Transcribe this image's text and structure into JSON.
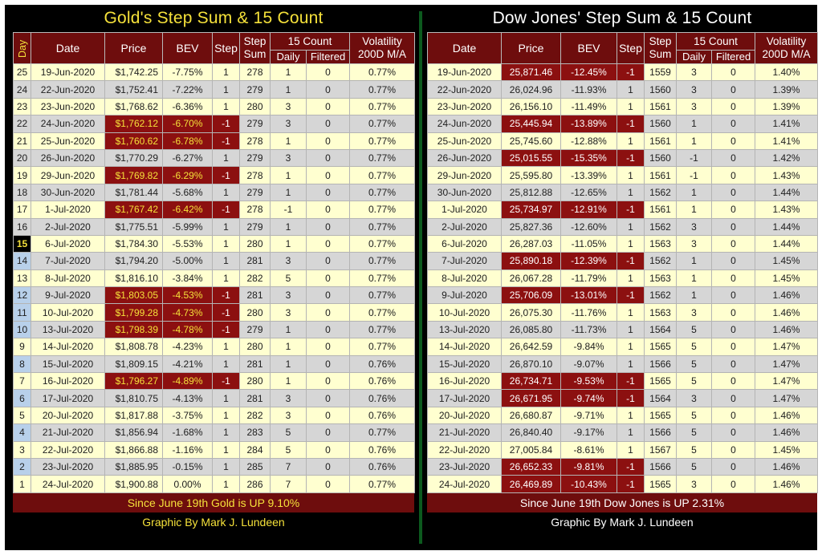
{
  "gold": {
    "title": "Gold's Step Sum & 15 Count",
    "headers": {
      "day": "Day",
      "date": "Date",
      "price": "Price",
      "bev": "BEV",
      "step": "Step",
      "step_sum": [
        "Step",
        "Sum"
      ],
      "count15": "15 Count",
      "daily": "Daily",
      "filtered": "Filtered",
      "volatility": [
        "Volatility",
        "200D M/A"
      ]
    },
    "rows": [
      {
        "day": "25",
        "date": "19-Jun-2020",
        "price": "$1,742.25",
        "bev": "-7.75%",
        "step": "1",
        "sum": "278",
        "daily": "1",
        "filtered": "0",
        "vol": "0.77%"
      },
      {
        "day": "24",
        "date": "22-Jun-2020",
        "price": "$1,752.41",
        "bev": "-7.22%",
        "step": "1",
        "sum": "279",
        "daily": "1",
        "filtered": "0",
        "vol": "0.77%"
      },
      {
        "day": "23",
        "date": "23-Jun-2020",
        "price": "$1,768.62",
        "bev": "-6.36%",
        "step": "1",
        "sum": "280",
        "daily": "3",
        "filtered": "0",
        "vol": "0.77%"
      },
      {
        "day": "22",
        "date": "24-Jun-2020",
        "price": "$1,762.12",
        "bev": "-6.70%",
        "step": "-1",
        "sum": "279",
        "daily": "3",
        "filtered": "0",
        "vol": "0.77%"
      },
      {
        "day": "21",
        "date": "25-Jun-2020",
        "price": "$1,760.62",
        "bev": "-6.78%",
        "step": "-1",
        "sum": "278",
        "daily": "1",
        "filtered": "0",
        "vol": "0.77%"
      },
      {
        "day": "20",
        "date": "26-Jun-2020",
        "price": "$1,770.29",
        "bev": "-6.27%",
        "step": "1",
        "sum": "279",
        "daily": "3",
        "filtered": "0",
        "vol": "0.77%"
      },
      {
        "day": "19",
        "date": "29-Jun-2020",
        "price": "$1,769.82",
        "bev": "-6.29%",
        "step": "-1",
        "sum": "278",
        "daily": "1",
        "filtered": "0",
        "vol": "0.77%"
      },
      {
        "day": "18",
        "date": "30-Jun-2020",
        "price": "$1,781.44",
        "bev": "-5.68%",
        "step": "1",
        "sum": "279",
        "daily": "1",
        "filtered": "0",
        "vol": "0.77%"
      },
      {
        "day": "17",
        "date": "1-Jul-2020",
        "price": "$1,767.42",
        "bev": "-6.42%",
        "step": "-1",
        "sum": "278",
        "daily": "-1",
        "filtered": "0",
        "vol": "0.77%"
      },
      {
        "day": "16",
        "date": "2-Jul-2020",
        "price": "$1,775.51",
        "bev": "-5.99%",
        "step": "1",
        "sum": "279",
        "daily": "1",
        "filtered": "0",
        "vol": "0.77%"
      },
      {
        "day": "15",
        "date": "6-Jul-2020",
        "price": "$1,784.30",
        "bev": "-5.53%",
        "step": "1",
        "sum": "280",
        "daily": "1",
        "filtered": "0",
        "vol": "0.77%"
      },
      {
        "day": "14",
        "date": "7-Jul-2020",
        "price": "$1,794.20",
        "bev": "-5.00%",
        "step": "1",
        "sum": "281",
        "daily": "3",
        "filtered": "0",
        "vol": "0.77%"
      },
      {
        "day": "13",
        "date": "8-Jul-2020",
        "price": "$1,816.10",
        "bev": "-3.84%",
        "step": "1",
        "sum": "282",
        "daily": "5",
        "filtered": "0",
        "vol": "0.77%"
      },
      {
        "day": "12",
        "date": "9-Jul-2020",
        "price": "$1,803.05",
        "bev": "-4.53%",
        "step": "-1",
        "sum": "281",
        "daily": "3",
        "filtered": "0",
        "vol": "0.77%"
      },
      {
        "day": "11",
        "date": "10-Jul-2020",
        "price": "$1,799.28",
        "bev": "-4.73%",
        "step": "-1",
        "sum": "280",
        "daily": "3",
        "filtered": "0",
        "vol": "0.77%"
      },
      {
        "day": "10",
        "date": "13-Jul-2020",
        "price": "$1,798.39",
        "bev": "-4.78%",
        "step": "-1",
        "sum": "279",
        "daily": "1",
        "filtered": "0",
        "vol": "0.77%"
      },
      {
        "day": "9",
        "date": "14-Jul-2020",
        "price": "$1,808.78",
        "bev": "-4.23%",
        "step": "1",
        "sum": "280",
        "daily": "1",
        "filtered": "0",
        "vol": "0.77%"
      },
      {
        "day": "8",
        "date": "15-Jul-2020",
        "price": "$1,809.15",
        "bev": "-4.21%",
        "step": "1",
        "sum": "281",
        "daily": "1",
        "filtered": "0",
        "vol": "0.76%"
      },
      {
        "day": "7",
        "date": "16-Jul-2020",
        "price": "$1,796.27",
        "bev": "-4.89%",
        "step": "-1",
        "sum": "280",
        "daily": "1",
        "filtered": "0",
        "vol": "0.76%"
      },
      {
        "day": "6",
        "date": "17-Jul-2020",
        "price": "$1,810.75",
        "bev": "-4.13%",
        "step": "1",
        "sum": "281",
        "daily": "3",
        "filtered": "0",
        "vol": "0.76%"
      },
      {
        "day": "5",
        "date": "20-Jul-2020",
        "price": "$1,817.88",
        "bev": "-3.75%",
        "step": "1",
        "sum": "282",
        "daily": "3",
        "filtered": "0",
        "vol": "0.76%"
      },
      {
        "day": "4",
        "date": "21-Jul-2020",
        "price": "$1,856.94",
        "bev": "-1.68%",
        "step": "1",
        "sum": "283",
        "daily": "5",
        "filtered": "0",
        "vol": "0.77%"
      },
      {
        "day": "3",
        "date": "22-Jul-2020",
        "price": "$1,866.88",
        "bev": "-1.16%",
        "step": "1",
        "sum": "284",
        "daily": "5",
        "filtered": "0",
        "vol": "0.76%"
      },
      {
        "day": "2",
        "date": "23-Jul-2020",
        "price": "$1,885.95",
        "bev": "-0.15%",
        "step": "1",
        "sum": "285",
        "daily": "7",
        "filtered": "0",
        "vol": "0.76%"
      },
      {
        "day": "1",
        "date": "24-Jul-2020",
        "price": "$1,900.88",
        "bev": "0.00%",
        "step": "1",
        "sum": "286",
        "daily": "7",
        "filtered": "0",
        "vol": "0.77%"
      }
    ],
    "summary": "Since June 19th Gold is UP 9.10%",
    "credit": "Graphic By Mark J. Lundeen"
  },
  "dow": {
    "title": "Dow Jones' Step Sum & 15 Count",
    "headers": {
      "date": "Date",
      "price": "Price",
      "bev": "BEV",
      "step": "Step",
      "step_sum": [
        "Step",
        "Sum"
      ],
      "count15": "15 Count",
      "daily": "Daily",
      "filtered": "Filtered",
      "volatility": [
        "Volatility",
        "200D M/A"
      ]
    },
    "rows": [
      {
        "date": "19-Jun-2020",
        "price": "25,871.46",
        "bev": "-12.45%",
        "step": "-1",
        "sum": "1559",
        "daily": "3",
        "filtered": "0",
        "vol": "1.40%"
      },
      {
        "date": "22-Jun-2020",
        "price": "26,024.96",
        "bev": "-11.93%",
        "step": "1",
        "sum": "1560",
        "daily": "3",
        "filtered": "0",
        "vol": "1.39%"
      },
      {
        "date": "23-Jun-2020",
        "price": "26,156.10",
        "bev": "-11.49%",
        "step": "1",
        "sum": "1561",
        "daily": "3",
        "filtered": "0",
        "vol": "1.39%"
      },
      {
        "date": "24-Jun-2020",
        "price": "25,445.94",
        "bev": "-13.89%",
        "step": "-1",
        "sum": "1560",
        "daily": "1",
        "filtered": "0",
        "vol": "1.41%"
      },
      {
        "date": "25-Jun-2020",
        "price": "25,745.60",
        "bev": "-12.88%",
        "step": "1",
        "sum": "1561",
        "daily": "1",
        "filtered": "0",
        "vol": "1.41%"
      },
      {
        "date": "26-Jun-2020",
        "price": "25,015.55",
        "bev": "-15.35%",
        "step": "-1",
        "sum": "1560",
        "daily": "-1",
        "filtered": "0",
        "vol": "1.42%"
      },
      {
        "date": "29-Jun-2020",
        "price": "25,595.80",
        "bev": "-13.39%",
        "step": "1",
        "sum": "1561",
        "daily": "-1",
        "filtered": "0",
        "vol": "1.43%"
      },
      {
        "date": "30-Jun-2020",
        "price": "25,812.88",
        "bev": "-12.65%",
        "step": "1",
        "sum": "1562",
        "daily": "1",
        "filtered": "0",
        "vol": "1.44%"
      },
      {
        "date": "1-Jul-2020",
        "price": "25,734.97",
        "bev": "-12.91%",
        "step": "-1",
        "sum": "1561",
        "daily": "1",
        "filtered": "0",
        "vol": "1.43%"
      },
      {
        "date": "2-Jul-2020",
        "price": "25,827.36",
        "bev": "-12.60%",
        "step": "1",
        "sum": "1562",
        "daily": "3",
        "filtered": "0",
        "vol": "1.44%"
      },
      {
        "date": "6-Jul-2020",
        "price": "26,287.03",
        "bev": "-11.05%",
        "step": "1",
        "sum": "1563",
        "daily": "3",
        "filtered": "0",
        "vol": "1.44%"
      },
      {
        "date": "7-Jul-2020",
        "price": "25,890.18",
        "bev": "-12.39%",
        "step": "-1",
        "sum": "1562",
        "daily": "1",
        "filtered": "0",
        "vol": "1.45%"
      },
      {
        "date": "8-Jul-2020",
        "price": "26,067.28",
        "bev": "-11.79%",
        "step": "1",
        "sum": "1563",
        "daily": "1",
        "filtered": "0",
        "vol": "1.45%"
      },
      {
        "date": "9-Jul-2020",
        "price": "25,706.09",
        "bev": "-13.01%",
        "step": "-1",
        "sum": "1562",
        "daily": "1",
        "filtered": "0",
        "vol": "1.46%"
      },
      {
        "date": "10-Jul-2020",
        "price": "26,075.30",
        "bev": "-11.76%",
        "step": "1",
        "sum": "1563",
        "daily": "3",
        "filtered": "0",
        "vol": "1.46%"
      },
      {
        "date": "13-Jul-2020",
        "price": "26,085.80",
        "bev": "-11.73%",
        "step": "1",
        "sum": "1564",
        "daily": "5",
        "filtered": "0",
        "vol": "1.46%"
      },
      {
        "date": "14-Jul-2020",
        "price": "26,642.59",
        "bev": "-9.84%",
        "step": "1",
        "sum": "1565",
        "daily": "5",
        "filtered": "0",
        "vol": "1.47%"
      },
      {
        "date": "15-Jul-2020",
        "price": "26,870.10",
        "bev": "-9.07%",
        "step": "1",
        "sum": "1566",
        "daily": "5",
        "filtered": "0",
        "vol": "1.47%"
      },
      {
        "date": "16-Jul-2020",
        "price": "26,734.71",
        "bev": "-9.53%",
        "step": "-1",
        "sum": "1565",
        "daily": "5",
        "filtered": "0",
        "vol": "1.47%"
      },
      {
        "date": "17-Jul-2020",
        "price": "26,671.95",
        "bev": "-9.74%",
        "step": "-1",
        "sum": "1564",
        "daily": "3",
        "filtered": "0",
        "vol": "1.47%"
      },
      {
        "date": "20-Jul-2020",
        "price": "26,680.87",
        "bev": "-9.71%",
        "step": "1",
        "sum": "1565",
        "daily": "5",
        "filtered": "0",
        "vol": "1.46%"
      },
      {
        "date": "21-Jul-2020",
        "price": "26,840.40",
        "bev": "-9.17%",
        "step": "1",
        "sum": "1566",
        "daily": "5",
        "filtered": "0",
        "vol": "1.46%"
      },
      {
        "date": "22-Jul-2020",
        "price": "27,005.84",
        "bev": "-8.61%",
        "step": "1",
        "sum": "1567",
        "daily": "5",
        "filtered": "0",
        "vol": "1.45%"
      },
      {
        "date": "23-Jul-2020",
        "price": "26,652.33",
        "bev": "-9.81%",
        "step": "-1",
        "sum": "1566",
        "daily": "5",
        "filtered": "0",
        "vol": "1.46%"
      },
      {
        "date": "24-Jul-2020",
        "price": "26,469.89",
        "bev": "-10.43%",
        "step": "-1",
        "sum": "1565",
        "daily": "3",
        "filtered": "0",
        "vol": "1.46%"
      }
    ],
    "summary": "Since June 19th Dow Jones is UP  2.31%",
    "credit": "Graphic By Mark J. Lundeen"
  },
  "colors": {
    "header_bg": "#6e0d0d",
    "negative_step_bg": "#8c1010",
    "gold_text": "#f5e13a",
    "row_odd": "#ffffd0",
    "row_even": "#d6d6d6",
    "divider": "#0c5a1e"
  }
}
